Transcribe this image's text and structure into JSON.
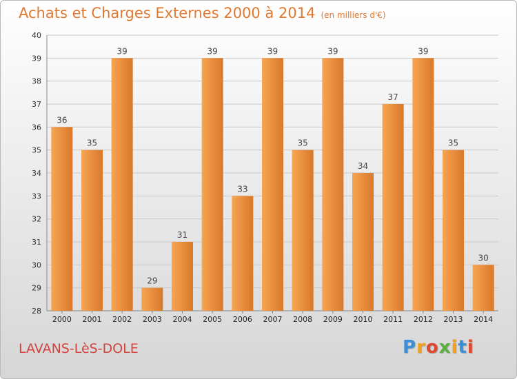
{
  "header": {
    "title": "Achats et Charges Externes 2000 à 2014",
    "unit": "(en milliers d'€)"
  },
  "footer": {
    "town": "LAVANS-LèS-DOLE",
    "logo": [
      "P",
      "r",
      "o",
      "x",
      "i",
      "t",
      "i"
    ],
    "logo_colors": [
      "#3a8fd6",
      "#f0a020",
      "#e04830",
      "#5ab040",
      "#f0a020",
      "#3a8fd6",
      "#e04830"
    ]
  },
  "colors": {
    "bar_light": "#f7a552",
    "bar_dark": "#d9782a",
    "title": "#e07830",
    "town": "#d2453f"
  },
  "chart_data": {
    "type": "bar",
    "title": "Achats et Charges Externes 2000 à 2014",
    "subtitle": "(en milliers d'€)",
    "categories": [
      "2000",
      "2001",
      "2002",
      "2003",
      "2004",
      "2005",
      "2006",
      "2007",
      "2008",
      "2009",
      "2010",
      "2011",
      "2012",
      "2013",
      "2014"
    ],
    "values": [
      36,
      35,
      39,
      29,
      31,
      39,
      33,
      39,
      35,
      39,
      34,
      37,
      39,
      35,
      30
    ],
    "ylim": [
      28,
      40
    ],
    "yticks": [
      28,
      29,
      30,
      31,
      32,
      33,
      34,
      35,
      36,
      37,
      38,
      39,
      40
    ],
    "grid": true,
    "data_labels": true
  }
}
